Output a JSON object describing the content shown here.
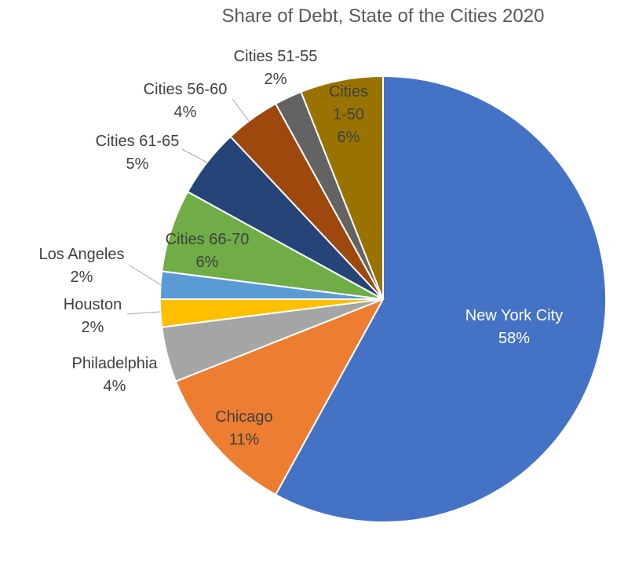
{
  "chart_data": {
    "type": "pie",
    "title": "Share of Debt, State of the Cities 2020",
    "slices": [
      {
        "name": "New York City",
        "lines": [
          "New York City"
        ],
        "value": 58,
        "label": "58%",
        "color": "#4472C4"
      },
      {
        "name": "Chicago",
        "lines": [
          "Chicago"
        ],
        "value": 11,
        "label": "11%",
        "color": "#ED7D31"
      },
      {
        "name": "Philadelphia",
        "lines": [
          "Philadelphia"
        ],
        "value": 4,
        "label": "4%",
        "color": "#A5A5A5"
      },
      {
        "name": "Houston",
        "lines": [
          "Houston"
        ],
        "value": 2,
        "label": "2%",
        "color": "#FFC000"
      },
      {
        "name": "Los Angeles",
        "lines": [
          "Los Angeles"
        ],
        "value": 2,
        "label": "2%",
        "color": "#5B9BD5"
      },
      {
        "name": "Cities 66-70",
        "lines": [
          "Cities 66-70"
        ],
        "value": 6,
        "label": "6%",
        "color": "#70AD47"
      },
      {
        "name": "Cities 61-65",
        "lines": [
          "Cities 61-65"
        ],
        "value": 5,
        "label": "5%",
        "color": "#264478"
      },
      {
        "name": "Cities 56-60",
        "lines": [
          "Cities 56-60"
        ],
        "value": 4,
        "label": "4%",
        "color": "#9E480E"
      },
      {
        "name": "Cities 51-55",
        "lines": [
          "Cities 51-55"
        ],
        "value": 2,
        "label": "2%",
        "color": "#636363"
      },
      {
        "name": "Cities 1-50",
        "lines": [
          "Cities",
          "1-50"
        ],
        "value": 6,
        "label": "6%",
        "color": "#997300"
      }
    ]
  }
}
